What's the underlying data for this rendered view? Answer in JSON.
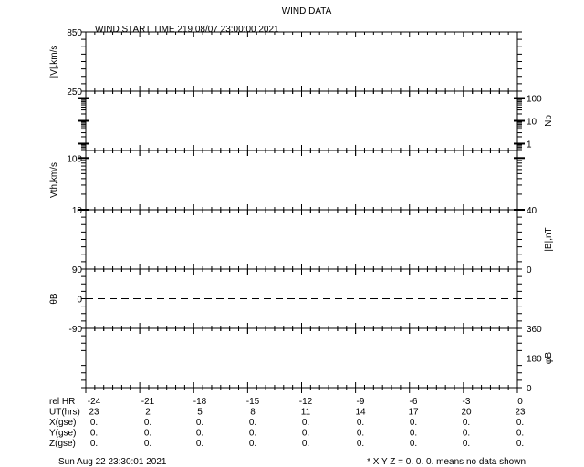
{
  "chart_data": {
    "type": "line",
    "title": "WIND DATA",
    "subtitle": "WIND START TIME 219 08/07 23:00:00 2021",
    "x": {
      "label": "rel HR",
      "range": [
        -24,
        0
      ],
      "ticks": [
        -24,
        -21,
        -18,
        -15,
        -12,
        -9,
        -6,
        -3,
        0
      ]
    },
    "panels": [
      {
        "label": "|V|,km/s",
        "side": "left",
        "scale": "linear",
        "range": [
          250,
          850
        ],
        "tick_labels": [
          "850",
          "250"
        ],
        "series": []
      },
      {
        "label": "Np",
        "side": "right",
        "scale": "log",
        "range": [
          0.5,
          200
        ],
        "tick_labels": [
          "100",
          "10",
          "1"
        ],
        "series": []
      },
      {
        "label": "Vth,km/s",
        "side": "left",
        "scale": "log",
        "range": [
          10,
          140
        ],
        "tick_labels": [
          "100",
          "10"
        ],
        "series": []
      },
      {
        "label": "|B|,nT",
        "side": "right",
        "scale": "linear",
        "range": [
          0,
          40
        ],
        "tick_labels": [
          "40",
          "0"
        ],
        "series": []
      },
      {
        "label": "θB",
        "side": "left",
        "scale": "linear",
        "range": [
          -90,
          90
        ],
        "tick_labels": [
          "90",
          "0",
          "-90"
        ],
        "reference_line": 0,
        "series": []
      },
      {
        "label": "φB",
        "side": "right",
        "scale": "linear",
        "range": [
          0,
          360
        ],
        "tick_labels": [
          "360",
          "180",
          "0"
        ],
        "reference_line": 180,
        "series": []
      }
    ],
    "table": {
      "rows": [
        {
          "label": "rel HR",
          "values": [
            "-24",
            "-21",
            "-18",
            "-15",
            "-12",
            "-9",
            "-6",
            "-3",
            "0"
          ]
        },
        {
          "label": "UT(hrs)",
          "values": [
            "23",
            "2",
            "5",
            "8",
            "11",
            "14",
            "17",
            "20",
            "23"
          ]
        },
        {
          "label": "X(gse)",
          "values": [
            "0.",
            "0.",
            "0.",
            "0.",
            "0.",
            "0.",
            "0.",
            "0.",
            "0."
          ]
        },
        {
          "label": "Y(gse)",
          "values": [
            "0.",
            "0.",
            "0.",
            "0.",
            "0.",
            "0.",
            "0.",
            "0.",
            "0."
          ]
        },
        {
          "label": "Z(gse)",
          "values": [
            "0.",
            "0.",
            "0.",
            "0.",
            "0.",
            "0.",
            "0.",
            "0.",
            "0."
          ]
        }
      ]
    },
    "footer_left": "Sun Aug 22 23:30:01 2021",
    "footer_right": "* X Y Z = 0. 0. 0. means no data shown"
  }
}
